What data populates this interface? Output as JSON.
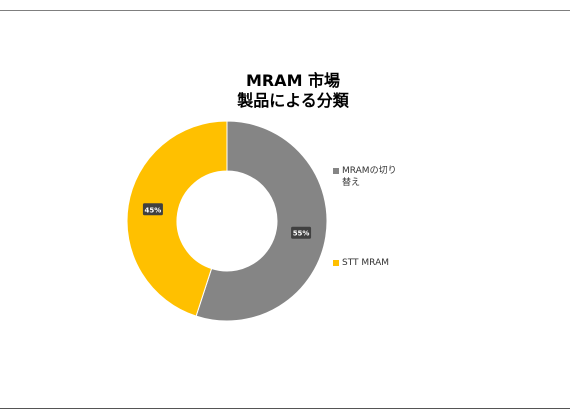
{
  "title_lines": [
    "MRAM 市場",
    "製品による分類"
  ],
  "chart_data": {
    "type": "pie",
    "donut": true,
    "title": "MRAM 市場 製品による分類",
    "categories": [
      "MRAMの切り替え",
      "STT MRAM"
    ],
    "values": [
      55,
      45
    ],
    "unit": "%",
    "data_labels": [
      "55%",
      "45%"
    ],
    "colors": [
      "#858585",
      "#FFC000"
    ],
    "legend": {
      "placement": "right",
      "entries": [
        {
          "label": "MRAMの切り替え",
          "color": "#858585"
        },
        {
          "label": "STT MRAM",
          "color": "#FFC000"
        }
      ]
    }
  }
}
